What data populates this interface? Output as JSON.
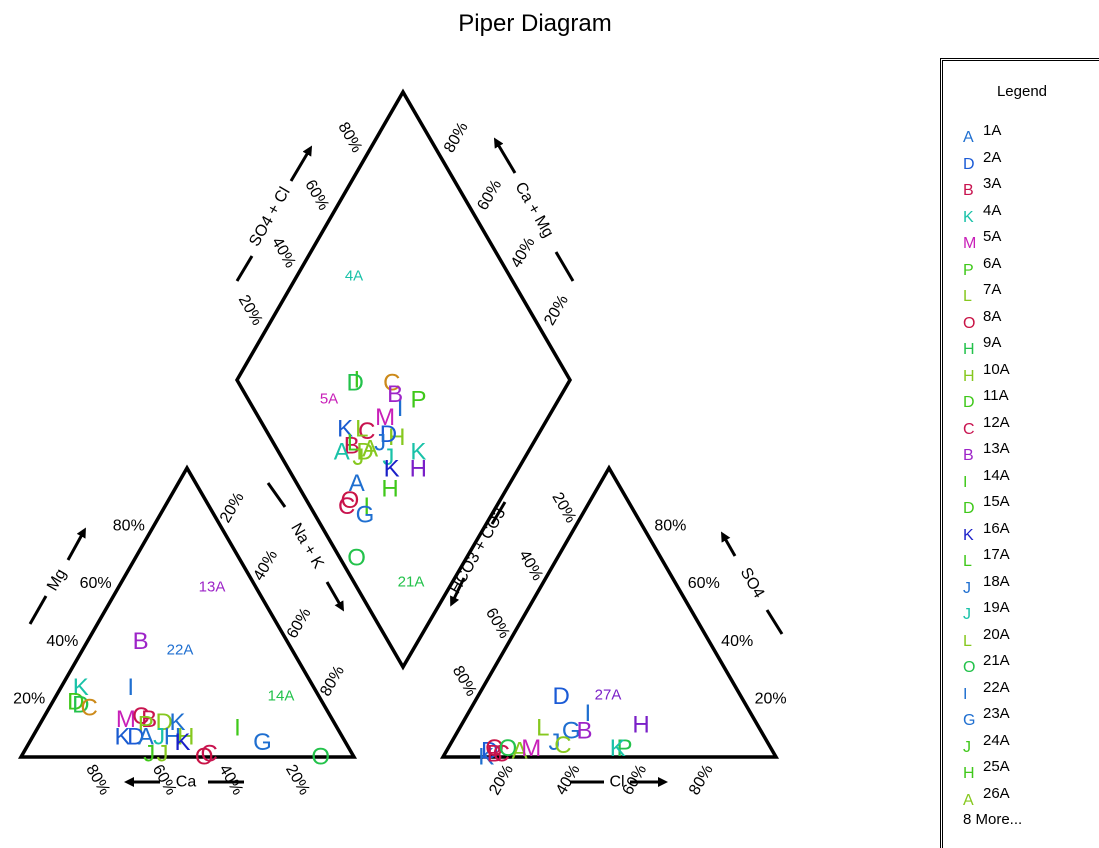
{
  "title": "Piper Diagram",
  "chart_data": {
    "type": "scatter",
    "subtype": "piper",
    "title": "Piper Diagram",
    "axes": {
      "cation_ca": "Ca",
      "cation_mg": "Mg",
      "cation_nak": "Na + K",
      "anion_cl": "Cl",
      "anion_so4": "SO4",
      "anion_hco3": "HCO3 + CO3",
      "diamond_so4cl": "SO4 + Cl",
      "diamond_camg": "Ca + Mg"
    },
    "ticks": [
      "20%",
      "40%",
      "60%",
      "80%"
    ],
    "grid": false,
    "legend_position": "right",
    "legend": {
      "title": "Legend",
      "more": "8 More...",
      "entries": [
        {
          "sym": "A",
          "label": "1A",
          "color": "#1f6fd0"
        },
        {
          "sym": "D",
          "label": "2A",
          "color": "#1b5bd6"
        },
        {
          "sym": "B",
          "label": "3A",
          "color": "#c8134f"
        },
        {
          "sym": "K",
          "label": "4A",
          "color": "#19c2a8"
        },
        {
          "sym": "M",
          "label": "5A",
          "color": "#c81fb8"
        },
        {
          "sym": "P",
          "label": "6A",
          "color": "#3fc81a"
        },
        {
          "sym": "L",
          "label": "7A",
          "color": "#86c81f"
        },
        {
          "sym": "O",
          "label": "8A",
          "color": "#c81345"
        },
        {
          "sym": "H",
          "label": "9A",
          "color": "#23c24b"
        },
        {
          "sym": "H",
          "label": "10A",
          "color": "#86c81f"
        },
        {
          "sym": "D",
          "label": "11A",
          "color": "#3fc81a"
        },
        {
          "sym": "C",
          "label": "12A",
          "color": "#c8134f"
        },
        {
          "sym": "B",
          "label": "13A",
          "color": "#9d24c8"
        },
        {
          "sym": "I",
          "label": "14A",
          "color": "#3fc81a"
        },
        {
          "sym": "D",
          "label": "15A",
          "color": "#3fc81a"
        },
        {
          "sym": "K",
          "label": "16A",
          "color": "#1a1fc8"
        },
        {
          "sym": "L",
          "label": "17A",
          "color": "#3fc81a"
        },
        {
          "sym": "J",
          "label": "18A",
          "color": "#1f6fd0"
        },
        {
          "sym": "J",
          "label": "19A",
          "color": "#19c2a8"
        },
        {
          "sym": "L",
          "label": "20A",
          "color": "#86c81f"
        },
        {
          "sym": "O",
          "label": "21A",
          "color": "#23c24b"
        },
        {
          "sym": "I",
          "label": "22A",
          "color": "#1f6fd0"
        },
        {
          "sym": "G",
          "label": "23A",
          "color": "#1f6fd0"
        },
        {
          "sym": "J",
          "label": "24A",
          "color": "#3fc81a"
        },
        {
          "sym": "H",
          "label": "25A",
          "color": "#3fc81a"
        },
        {
          "sym": "A",
          "label": "26A",
          "color": "#86c81f"
        }
      ]
    },
    "annotations": [
      {
        "label": "4A",
        "color": "#19c2a8",
        "panel": "diamond"
      },
      {
        "label": "5A",
        "color": "#c81fb8",
        "panel": "diamond"
      },
      {
        "label": "21A",
        "color": "#23c24b",
        "panel": "diamond"
      },
      {
        "label": "13A",
        "color": "#9d24c8",
        "panel": "cation"
      },
      {
        "label": "22A",
        "color": "#1f6fd0",
        "panel": "cation"
      },
      {
        "label": "14A",
        "color": "#23c24b",
        "panel": "cation"
      },
      {
        "label": "27A",
        "color": "#7a1fc8",
        "panel": "anion"
      }
    ],
    "cation_points": [
      {
        "sym": "K",
        "color": "#19c2a8",
        "ca": 70,
        "mg": 24
      },
      {
        "sym": "I",
        "color": "#1f6fd0",
        "ca": 55,
        "mg": 24
      },
      {
        "sym": "D",
        "color": "#3fc81a",
        "ca": 74,
        "mg": 19
      },
      {
        "sym": "D",
        "color": "#23c24b",
        "ca": 73,
        "mg": 18
      },
      {
        "sym": "C",
        "color": "#cc8a1a",
        "ca": 71,
        "mg": 17
      },
      {
        "sym": "B",
        "color": "#9d24c8",
        "ca": 44,
        "mg": 40
      },
      {
        "sym": "M",
        "color": "#c81fb8",
        "ca": 62,
        "mg": 13
      },
      {
        "sym": "C",
        "color": "#c8134f",
        "ca": 57,
        "mg": 14
      },
      {
        "sym": "B",
        "color": "#c8134f",
        "ca": 55,
        "mg": 13
      },
      {
        "sym": "P",
        "color": "#86c81f",
        "ca": 57,
        "mg": 11
      },
      {
        "sym": "D",
        "color": "#86c81f",
        "ca": 51,
        "mg": 12
      },
      {
        "sym": "K",
        "color": "#1f6fd0",
        "ca": 47,
        "mg": 12
      },
      {
        "sym": "K",
        "color": "#1a5bd0",
        "ca": 66,
        "mg": 7
      },
      {
        "sym": "D",
        "color": "#1b5bd6",
        "ca": 62,
        "mg": 7
      },
      {
        "sym": "A",
        "color": "#1f6fd0",
        "ca": 59,
        "mg": 7
      },
      {
        "sym": "J",
        "color": "#19c2a8",
        "ca": 55,
        "mg": 7
      },
      {
        "sym": "H",
        "color": "#1f6fd0",
        "ca": 51,
        "mg": 7
      },
      {
        "sym": "H",
        "color": "#86c81f",
        "ca": 47,
        "mg": 7
      },
      {
        "sym": "K",
        "color": "#1a1fc8",
        "ca": 49,
        "mg": 5
      },
      {
        "sym": "I",
        "color": "#3fc81a",
        "ca": 30,
        "mg": 10
      },
      {
        "sym": "G",
        "color": "#1f6fd0",
        "ca": 25,
        "mg": 5
      },
      {
        "sym": "J",
        "color": "#3fc81a",
        "ca": 61,
        "mg": 1
      },
      {
        "sym": "J",
        "color": "#86c81f",
        "ca": 57,
        "mg": 1
      },
      {
        "sym": "O",
        "color": "#c81345",
        "ca": 45,
        "mg": 0
      },
      {
        "sym": "C",
        "color": "#c8134f",
        "ca": 43,
        "mg": 1
      },
      {
        "sym": "O",
        "color": "#23c24b",
        "ca": 10,
        "mg": 0
      }
    ],
    "anion_points": [
      {
        "sym": "K",
        "color": "#1f6fd0",
        "cl": 13,
        "so4": 0
      },
      {
        "sym": "D",
        "color": "#1b5bd6",
        "cl": 13,
        "so4": 2
      },
      {
        "sym": "O",
        "color": "#c81345",
        "cl": 14,
        "so4": 3
      },
      {
        "sym": "B",
        "color": "#c8134f",
        "cl": 15,
        "so4": 1
      },
      {
        "sym": "C",
        "color": "#c8134f",
        "cl": 17,
        "so4": 1
      },
      {
        "sym": "O",
        "color": "#23c24b",
        "cl": 18,
        "so4": 3
      },
      {
        "sym": "A",
        "color": "#86c81f",
        "cl": 22,
        "so4": 2
      },
      {
        "sym": "M",
        "color": "#c81fb8",
        "cl": 25,
        "so4": 3
      },
      {
        "sym": "L",
        "color": "#86c81f",
        "cl": 25,
        "so4": 10
      },
      {
        "sym": "D",
        "color": "#1b5bd6",
        "cl": 25,
        "so4": 21
      },
      {
        "sym": "J",
        "color": "#1f6fd0",
        "cl": 31,
        "so4": 5
      },
      {
        "sym": "G",
        "color": "#1f6fd0",
        "cl": 34,
        "so4": 9
      },
      {
        "sym": "I",
        "color": "#1f6fd0",
        "cl": 36,
        "so4": 15
      },
      {
        "sym": "B",
        "color": "#9d24c8",
        "cl": 38,
        "so4": 9
      },
      {
        "sym": "C",
        "color": "#86c81f",
        "cl": 34,
        "so4": 4
      },
      {
        "sym": "H",
        "color": "#7a1fc8",
        "cl": 54,
        "so4": 11
      },
      {
        "sym": "P",
        "color": "#23c24b",
        "cl": 53,
        "so4": 3
      },
      {
        "sym": "K",
        "color": "#19c2a8",
        "cl": 51,
        "so4": 3
      }
    ],
    "diamond_points": [
      {
        "sym": "K",
        "color": "#19c2a8",
        "so4cl": 42,
        "camg": 33
      },
      {
        "sym": "I",
        "color": "#1f6fd0",
        "so4cl": 44,
        "camg": 46
      },
      {
        "sym": "P",
        "color": "#3fc81a",
        "so4cl": 51,
        "camg": 42
      },
      {
        "sym": "C",
        "color": "#cc8a1a",
        "so4cl": 46,
        "camg": 53
      },
      {
        "sym": "B",
        "color": "#9d24c8",
        "so4cl": 45,
        "camg": 50
      },
      {
        "sym": "H",
        "color": "#7a1fc8",
        "so4cl": 39,
        "camg": 30
      },
      {
        "sym": "H",
        "color": "#86c81f",
        "so4cl": 38,
        "camg": 42
      },
      {
        "sym": "M",
        "color": "#c81fb8",
        "so4cl": 38,
        "camg": 49
      },
      {
        "sym": "D",
        "color": "#1b5bd6",
        "so4cl": 36,
        "camg": 45
      },
      {
        "sym": "I",
        "color": "#3fc81a",
        "so4cl": 36,
        "camg": 64
      },
      {
        "sym": "D",
        "color": "#23c24b",
        "so4cl": 35,
        "camg": 64
      },
      {
        "sym": "J",
        "color": "#1f6fd0",
        "so4cl": 32,
        "camg": 46
      },
      {
        "sym": "J",
        "color": "#19c2a8",
        "so4cl": 32,
        "camg": 41
      },
      {
        "sym": "K",
        "color": "#1a1fc8",
        "so4cl": 31,
        "camg": 38
      },
      {
        "sym": "H",
        "color": "#3fc81a",
        "so4cl": 27,
        "camg": 35
      },
      {
        "sym": "C",
        "color": "#c8134f",
        "so4cl": 30,
        "camg": 52
      },
      {
        "sym": "L",
        "color": "#86c81f",
        "so4cl": 29,
        "camg": 54
      },
      {
        "sym": "A",
        "color": "#86c81f",
        "so4cl": 28,
        "camg": 48
      },
      {
        "sym": "D",
        "color": "#86c81f",
        "so4cl": 26,
        "camg": 49
      },
      {
        "sym": "I",
        "color": "#3fc81a",
        "so4cl": 17,
        "camg": 39
      },
      {
        "sym": "K",
        "color": "#1a5bd0",
        "so4cl": 24,
        "camg": 59
      },
      {
        "sym": "B",
        "color": "#c8134f",
        "so4cl": 23,
        "camg": 54
      },
      {
        "sym": "L",
        "color": "#3fc81a",
        "so4cl": 24,
        "camg": 54
      },
      {
        "sym": "J",
        "color": "#86c81f",
        "so4cl": 23,
        "camg": 50
      },
      {
        "sym": "A",
        "color": "#1f6fd0",
        "so4cl": 18,
        "camg": 46
      },
      {
        "sym": "A",
        "color": "#19c2a8",
        "so4cl": 19,
        "camg": 56
      },
      {
        "sym": "G",
        "color": "#1f6fd0",
        "so4cl": 15,
        "camg": 38
      },
      {
        "sym": "O",
        "color": "#c81345",
        "so4cl": 13,
        "camg": 45
      },
      {
        "sym": "C",
        "color": "#c8134f",
        "so4cl": 11,
        "camg": 45
      },
      {
        "sym": "O",
        "color": "#23c24b",
        "so4cl": 5,
        "camg": 33
      }
    ]
  }
}
